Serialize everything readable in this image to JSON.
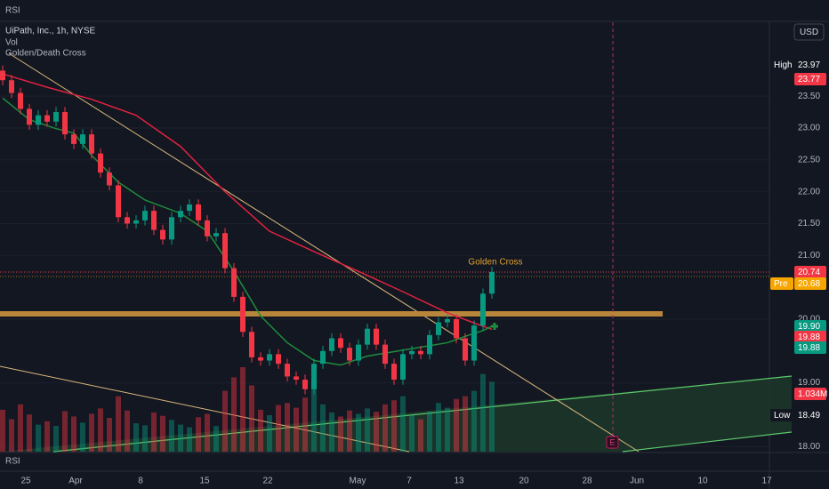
{
  "chart_data": {
    "type": "candlestick",
    "header": {
      "top_label": "RSI",
      "symbol": "UiPath, Inc., 1h, NYSE",
      "indicator_1": "Vol",
      "indicator_2": "Golden/Death Cross",
      "bottom_label": "RSI",
      "currency": "USD"
    },
    "annotation": "Golden Cross",
    "earnings_marker": "E",
    "x_labels": [
      "25",
      "Apr",
      "8",
      "15",
      "22",
      "May",
      "7",
      "13",
      "20",
      "28",
      "Jun",
      "10",
      "17"
    ],
    "open": [
      23.9,
      23.75,
      23.55,
      23.3,
      23.05,
      23.2,
      23.1,
      23.25,
      22.9,
      22.75,
      22.9,
      22.6,
      22.3,
      22.1,
      21.6,
      21.5,
      21.55,
      21.7,
      21.4,
      21.25,
      21.6,
      21.7,
      21.8,
      21.55,
      21.3,
      21.35,
      20.8,
      20.35,
      19.8,
      19.4,
      19.35,
      19.45,
      19.3,
      19.1,
      19.05,
      18.9,
      19.3,
      19.5,
      19.7,
      19.55,
      19.35,
      19.6,
      19.85,
      19.6,
      19.3,
      19.05,
      19.45,
      19.5,
      19.45,
      19.75,
      19.95,
      20.0,
      19.7,
      19.35,
      19.9,
      20.4
    ],
    "high": [
      23.98,
      23.83,
      23.63,
      23.38,
      23.28,
      23.28,
      23.33,
      23.33,
      22.98,
      22.98,
      22.98,
      22.68,
      22.38,
      22.18,
      21.68,
      21.63,
      21.78,
      21.78,
      21.48,
      21.68,
      21.78,
      21.88,
      21.88,
      21.63,
      21.43,
      21.43,
      20.88,
      20.43,
      19.88,
      19.48,
      19.53,
      19.53,
      19.38,
      19.18,
      19.13,
      19.38,
      19.58,
      19.78,
      19.78,
      19.63,
      19.68,
      19.93,
      19.93,
      19.68,
      19.38,
      19.53,
      19.58,
      19.58,
      19.83,
      20.03,
      20.08,
      20.08,
      19.78,
      19.98,
      20.48,
      20.82
    ],
    "low": [
      23.67,
      23.47,
      23.22,
      22.97,
      22.97,
      23.02,
      23.02,
      22.82,
      22.67,
      22.67,
      22.52,
      22.22,
      22.02,
      21.52,
      21.42,
      21.42,
      21.47,
      21.32,
      21.17,
      21.17,
      21.52,
      21.62,
      21.47,
      21.22,
      21.22,
      20.72,
      20.27,
      19.72,
      19.32,
      19.27,
      19.27,
      19.22,
      19.02,
      18.97,
      18.82,
      18.82,
      19.22,
      19.42,
      19.47,
      19.27,
      19.27,
      19.52,
      19.52,
      19.22,
      18.97,
      18.97,
      19.37,
      19.37,
      19.37,
      19.67,
      19.87,
      19.62,
      19.27,
      19.27,
      19.82,
      20.32
    ],
    "close": [
      23.75,
      23.55,
      23.3,
      23.05,
      23.2,
      23.1,
      23.25,
      22.9,
      22.75,
      22.9,
      22.6,
      22.3,
      22.1,
      21.6,
      21.5,
      21.55,
      21.7,
      21.4,
      21.25,
      21.6,
      21.7,
      21.8,
      21.55,
      21.3,
      21.35,
      20.8,
      20.35,
      19.8,
      19.4,
      19.35,
      19.45,
      19.3,
      19.1,
      19.05,
      18.9,
      19.3,
      19.5,
      19.7,
      19.55,
      19.35,
      19.6,
      19.85,
      19.6,
      19.3,
      19.05,
      19.45,
      19.5,
      19.45,
      19.75,
      19.95,
      20.0,
      19.7,
      19.35,
      19.9,
      20.4,
      20.74
    ],
    "volume": [
      620000,
      480000,
      700000,
      550000,
      400000,
      450000,
      380000,
      600000,
      520000,
      430000,
      560000,
      640000,
      500000,
      820000,
      610000,
      420000,
      390000,
      580000,
      530000,
      470000,
      400000,
      360000,
      510000,
      560000,
      380000,
      900000,
      1100000,
      1250000,
      980000,
      620000,
      540000,
      690000,
      720000,
      650000,
      800000,
      950000,
      700000,
      580000,
      520000,
      610000,
      560000,
      640000,
      590000,
      700000,
      760000,
      820000,
      540000,
      480000,
      600000,
      720000,
      650000,
      780000,
      820000,
      900000,
      1150000,
      1034000
    ],
    "up_color": "#089981",
    "down_color": "#f23645",
    "moving_averages": [
      {
        "color": "#e0223f",
        "x": [
          0,
          5,
          10,
          15,
          20,
          25,
          30,
          35,
          40,
          45,
          50,
          53,
          55
        ],
        "values": [
          23.85,
          23.64,
          23.45,
          23.2,
          22.71,
          22.0,
          21.38,
          21.06,
          20.75,
          20.43,
          20.1,
          19.94,
          19.84
        ]
      },
      {
        "color": "#1e8c3c",
        "x": [
          0,
          3,
          6,
          8,
          10,
          13,
          16,
          20,
          23,
          26,
          29,
          32,
          35,
          38,
          41,
          44,
          47,
          50,
          52,
          54,
          55
        ],
        "values": [
          23.47,
          23.13,
          22.99,
          22.92,
          22.57,
          22.15,
          21.87,
          21.66,
          21.38,
          20.75,
          20.05,
          19.63,
          19.35,
          19.28,
          19.42,
          19.49,
          19.56,
          19.63,
          19.73,
          19.82,
          19.89
        ]
      }
    ],
    "ylim": [
      17.92,
      24.66
    ],
    "yticks": [
      {
        "value": 18,
        "label": "18.00"
      },
      {
        "value": 19,
        "label": "19.00"
      },
      {
        "value": 20,
        "label": "20.00"
      },
      {
        "value": 21,
        "label": "21.00"
      },
      {
        "value": 21.5,
        "label": "21.50"
      },
      {
        "value": 22,
        "label": "22.00"
      },
      {
        "value": 22.5,
        "label": "22.50"
      },
      {
        "value": 23,
        "label": "23.00"
      },
      {
        "value": 23.5,
        "label": "23.50"
      }
    ],
    "badges": [
      {
        "tag": "High",
        "text": "23.97",
        "color": "#131722"
      },
      {
        "text": "23.77",
        "color": "#f23645"
      },
      {
        "text": "20.74",
        "color": "#f23645"
      },
      {
        "tag": "Pre",
        "text": "20.68",
        "color": "#f7a600"
      },
      {
        "text": "19.90",
        "color": "#089981"
      },
      {
        "text": "19.88",
        "color": "#f23645"
      },
      {
        "text": "19.88",
        "color": "#089981"
      },
      {
        "text": "1.034M",
        "color": "#f23645"
      },
      {
        "tag": "Low",
        "text": "18.49",
        "color": "#131722"
      }
    ],
    "grid": true
  }
}
